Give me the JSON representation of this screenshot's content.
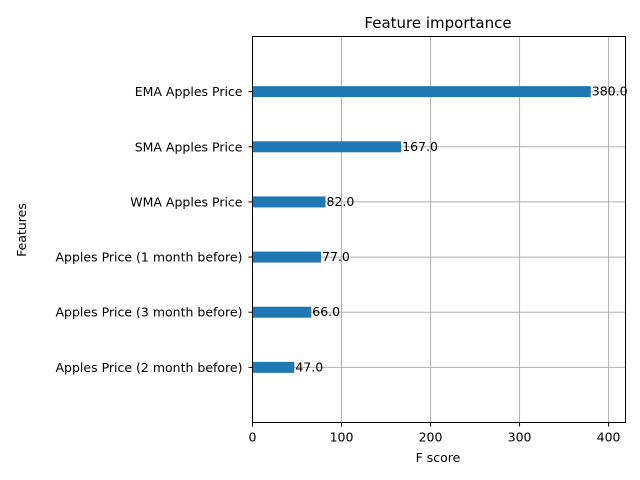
{
  "chart_data": {
    "type": "bar",
    "orientation": "horizontal",
    "title": "Feature importance",
    "xlabel": "F score",
    "ylabel": "Features",
    "categories": [
      "Apples Price (2 month before)",
      "Apples Price (3 month before)",
      "Apples Price (1 month before)",
      "WMA Apples Price",
      "SMA Apples Price",
      "EMA Apples Price"
    ],
    "values": [
      47.0,
      66.0,
      77.0,
      82.0,
      167.0,
      380.0
    ],
    "value_labels": [
      "47.0",
      "66.0",
      "77.0",
      "82.0",
      "167.0",
      "380.0"
    ],
    "xlim": [
      0,
      419
    ],
    "xticks": [
      0,
      100,
      200,
      300,
      400
    ],
    "grid": true,
    "bar_color": "#1f77b4",
    "grid_color": "#b0b0b0"
  }
}
